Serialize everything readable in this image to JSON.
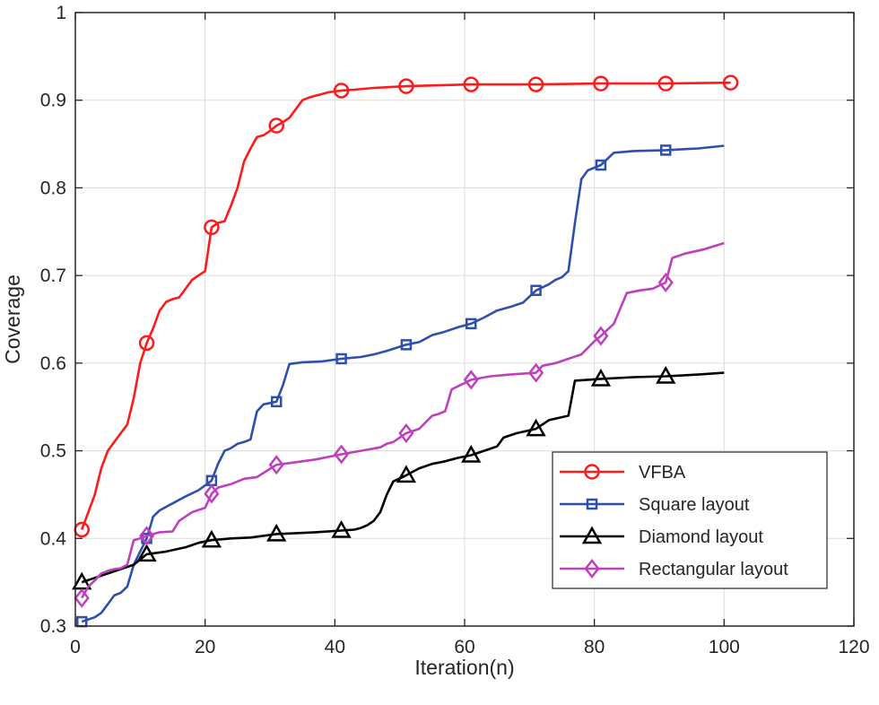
{
  "chart_data": {
    "type": "line",
    "title": "",
    "xlabel": "Iteration(n)",
    "ylabel": "Coverage",
    "xlim": [
      0,
      120
    ],
    "ylim": [
      0.3,
      1
    ],
    "xticks": [
      0,
      20,
      40,
      60,
      80,
      100,
      120
    ],
    "yticks": [
      0.3,
      0.4,
      0.5,
      0.6,
      0.7,
      0.8,
      0.9,
      1
    ],
    "xtick_labels": [
      "0",
      "20",
      "40",
      "60",
      "80",
      "100",
      "120"
    ],
    "ytick_labels": [
      "0.3",
      "0.4",
      "0.5",
      "0.6",
      "0.7",
      "0.8",
      "0.9",
      "1"
    ],
    "grid": true,
    "legend_position": "bottom-right",
    "series": [
      {
        "name": "VFBA",
        "color": "#ff1a1a",
        "marker": "circle",
        "points": [
          [
            1,
            0.41
          ],
          [
            2,
            0.43
          ],
          [
            3,
            0.45
          ],
          [
            4,
            0.48
          ],
          [
            5,
            0.5
          ],
          [
            6,
            0.51
          ],
          [
            7,
            0.52
          ],
          [
            8,
            0.53
          ],
          [
            9,
            0.56
          ],
          [
            10,
            0.6
          ],
          [
            11,
            0.623
          ],
          [
            12,
            0.64
          ],
          [
            13,
            0.66
          ],
          [
            14,
            0.67
          ],
          [
            15,
            0.673
          ],
          [
            16,
            0.675
          ],
          [
            17,
            0.685
          ],
          [
            18,
            0.695
          ],
          [
            19,
            0.7
          ],
          [
            20,
            0.705
          ],
          [
            21,
            0.755
          ],
          [
            22,
            0.76
          ],
          [
            23,
            0.762
          ],
          [
            24,
            0.78
          ],
          [
            25,
            0.8
          ],
          [
            26,
            0.83
          ],
          [
            27,
            0.845
          ],
          [
            28,
            0.858
          ],
          [
            29,
            0.86
          ],
          [
            30,
            0.865
          ],
          [
            31,
            0.871
          ],
          [
            32,
            0.875
          ],
          [
            33,
            0.88
          ],
          [
            34,
            0.89
          ],
          [
            35,
            0.9
          ],
          [
            36,
            0.903
          ],
          [
            37,
            0.905
          ],
          [
            38,
            0.907
          ],
          [
            39,
            0.909
          ],
          [
            40,
            0.91
          ],
          [
            41,
            0.911
          ],
          [
            43,
            0.912
          ],
          [
            46,
            0.914
          ],
          [
            51,
            0.916
          ],
          [
            56,
            0.917
          ],
          [
            61,
            0.918
          ],
          [
            71,
            0.918
          ],
          [
            81,
            0.919
          ],
          [
            91,
            0.919
          ],
          [
            101,
            0.92
          ]
        ],
        "markers_at": [
          1,
          11,
          21,
          31,
          41,
          51,
          61,
          71,
          81,
          91,
          101
        ]
      },
      {
        "name": "Square layout",
        "color": "#2e4fae",
        "marker": "square",
        "points": [
          [
            1,
            0.305
          ],
          [
            3,
            0.31
          ],
          [
            4,
            0.315
          ],
          [
            5,
            0.325
          ],
          [
            6,
            0.335
          ],
          [
            7,
            0.338
          ],
          [
            8,
            0.345
          ],
          [
            9,
            0.37
          ],
          [
            10,
            0.385
          ],
          [
            11,
            0.4
          ],
          [
            12,
            0.425
          ],
          [
            13,
            0.432
          ],
          [
            15,
            0.44
          ],
          [
            17,
            0.448
          ],
          [
            19,
            0.455
          ],
          [
            21,
            0.466
          ],
          [
            22,
            0.485
          ],
          [
            23,
            0.5
          ],
          [
            24,
            0.503
          ],
          [
            25,
            0.508
          ],
          [
            26,
            0.51
          ],
          [
            27,
            0.513
          ],
          [
            28,
            0.545
          ],
          [
            29,
            0.553
          ],
          [
            31,
            0.556
          ],
          [
            32,
            0.575
          ],
          [
            33,
            0.599
          ],
          [
            35,
            0.601
          ],
          [
            38,
            0.602
          ],
          [
            41,
            0.605
          ],
          [
            44,
            0.607
          ],
          [
            46,
            0.61
          ],
          [
            48,
            0.614
          ],
          [
            51,
            0.621
          ],
          [
            53,
            0.624
          ],
          [
            55,
            0.632
          ],
          [
            57,
            0.636
          ],
          [
            59,
            0.641
          ],
          [
            61,
            0.645
          ],
          [
            63,
            0.652
          ],
          [
            65,
            0.66
          ],
          [
            67,
            0.664
          ],
          [
            69,
            0.669
          ],
          [
            71,
            0.683
          ],
          [
            73,
            0.69
          ],
          [
            74,
            0.695
          ],
          [
            75,
            0.698
          ],
          [
            76,
            0.705
          ],
          [
            77,
            0.76
          ],
          [
            78,
            0.81
          ],
          [
            79,
            0.82
          ],
          [
            81,
            0.826
          ],
          [
            83,
            0.84
          ],
          [
            86,
            0.842
          ],
          [
            91,
            0.843
          ],
          [
            96,
            0.845
          ],
          [
            100,
            0.848
          ]
        ],
        "markers_at": [
          1,
          11,
          21,
          31,
          41,
          51,
          61,
          71,
          81,
          91
        ]
      },
      {
        "name": "Diamond layout",
        "color": "#000000",
        "marker": "triangle",
        "points": [
          [
            1,
            0.35
          ],
          [
            3,
            0.355
          ],
          [
            5,
            0.36
          ],
          [
            7,
            0.365
          ],
          [
            9,
            0.37
          ],
          [
            11,
            0.382
          ],
          [
            14,
            0.385
          ],
          [
            17,
            0.39
          ],
          [
            19,
            0.395
          ],
          [
            21,
            0.398
          ],
          [
            24,
            0.4
          ],
          [
            27,
            0.401
          ],
          [
            31,
            0.405
          ],
          [
            34,
            0.406
          ],
          [
            37,
            0.407
          ],
          [
            41,
            0.409
          ],
          [
            43,
            0.41
          ],
          [
            44,
            0.412
          ],
          [
            45,
            0.415
          ],
          [
            46,
            0.42
          ],
          [
            47,
            0.43
          ],
          [
            48,
            0.45
          ],
          [
            49,
            0.465
          ],
          [
            51,
            0.472
          ],
          [
            53,
            0.48
          ],
          [
            55,
            0.485
          ],
          [
            57,
            0.488
          ],
          [
            59,
            0.492
          ],
          [
            61,
            0.495
          ],
          [
            63,
            0.5
          ],
          [
            65,
            0.505
          ],
          [
            66,
            0.515
          ],
          [
            68,
            0.52
          ],
          [
            71,
            0.525
          ],
          [
            73,
            0.535
          ],
          [
            76,
            0.54
          ],
          [
            77,
            0.58
          ],
          [
            79,
            0.581
          ],
          [
            81,
            0.582
          ],
          [
            86,
            0.584
          ],
          [
            91,
            0.585
          ],
          [
            96,
            0.587
          ],
          [
            100,
            0.589
          ]
        ],
        "markers_at": [
          1,
          11,
          21,
          31,
          41,
          51,
          61,
          71,
          81,
          91
        ]
      },
      {
        "name": "Rectangular layout",
        "color": "#bf40bf",
        "marker": "diamond",
        "points": [
          [
            1,
            0.332
          ],
          [
            2,
            0.345
          ],
          [
            3,
            0.352
          ],
          [
            4,
            0.36
          ],
          [
            5,
            0.363
          ],
          [
            6,
            0.365
          ],
          [
            7,
            0.366
          ],
          [
            8,
            0.37
          ],
          [
            9,
            0.398
          ],
          [
            10,
            0.4
          ],
          [
            11,
            0.403
          ],
          [
            13,
            0.407
          ],
          [
            15,
            0.408
          ],
          [
            16,
            0.42
          ],
          [
            18,
            0.43
          ],
          [
            20,
            0.435
          ],
          [
            21,
            0.451
          ],
          [
            22,
            0.458
          ],
          [
            24,
            0.462
          ],
          [
            26,
            0.468
          ],
          [
            28,
            0.47
          ],
          [
            31,
            0.484
          ],
          [
            34,
            0.487
          ],
          [
            37,
            0.49
          ],
          [
            41,
            0.496
          ],
          [
            44,
            0.5
          ],
          [
            47,
            0.504
          ],
          [
            48,
            0.508
          ],
          [
            49,
            0.51
          ],
          [
            51,
            0.52
          ],
          [
            53,
            0.525
          ],
          [
            55,
            0.54
          ],
          [
            56,
            0.542
          ],
          [
            57,
            0.545
          ],
          [
            58,
            0.57
          ],
          [
            61,
            0.581
          ],
          [
            64,
            0.585
          ],
          [
            67,
            0.587
          ],
          [
            71,
            0.589
          ],
          [
            72,
            0.597
          ],
          [
            74,
            0.6
          ],
          [
            76,
            0.605
          ],
          [
            78,
            0.61
          ],
          [
            80,
            0.625
          ],
          [
            81,
            0.631
          ],
          [
            83,
            0.645
          ],
          [
            85,
            0.68
          ],
          [
            87,
            0.683
          ],
          [
            89,
            0.685
          ],
          [
            91,
            0.692
          ],
          [
            92,
            0.72
          ],
          [
            94,
            0.725
          ],
          [
            97,
            0.73
          ],
          [
            100,
            0.737
          ]
        ],
        "markers_at": [
          1,
          11,
          21,
          31,
          41,
          51,
          61,
          71,
          81,
          91
        ]
      }
    ]
  }
}
